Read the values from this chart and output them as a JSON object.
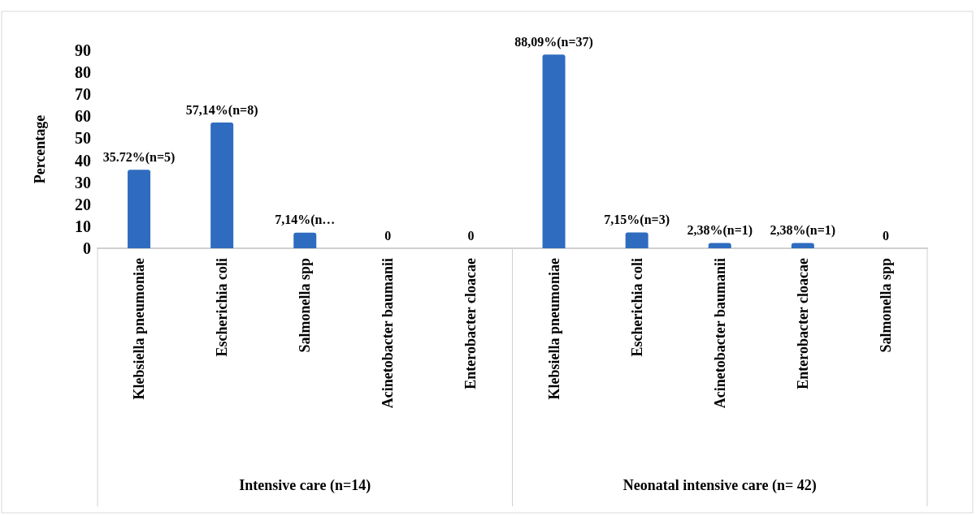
{
  "chart_data": {
    "type": "bar",
    "ylabel": "Percentage",
    "categories": [
      "Klebsiella pneumoniae",
      "Escherichia coli",
      "Salmonella spp",
      "Acinetobacter baumanii",
      "Enterobacter cloacae",
      "Klebsiella pneumoniae",
      "Escherichia coli",
      "Acinetobacter baumanii",
      "Enterobacter cloacae",
      "Salmonella spp"
    ],
    "values": [
      35.72,
      57.14,
      7.14,
      0,
      0,
      88.09,
      7.15,
      2.38,
      2.38,
      0
    ],
    "value_labels": [
      "35.72%(n=5)",
      "57,14%(n=8)",
      "7,14%(n…",
      "0",
      "0",
      "88,09%(n=37)",
      "7,15%(n=3)",
      "2,38%(n=1)",
      "2,38%(n=1)",
      "0"
    ],
    "color": "#2f6cbf",
    "ylim": [
      0,
      90
    ],
    "yticks": [
      0,
      10,
      20,
      30,
      40,
      50,
      60,
      70,
      80,
      90
    ],
    "grid": false,
    "annotations": [
      "Intensive care (n=14)",
      "Neonatal intensive care (n= 42)"
    ]
  }
}
